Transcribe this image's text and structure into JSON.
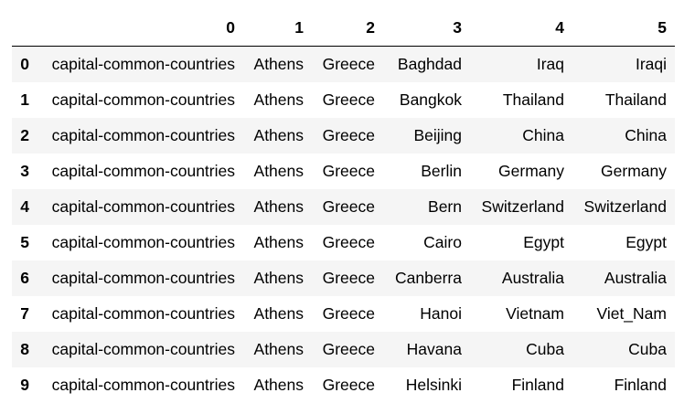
{
  "table": {
    "columns": [
      "",
      "0",
      "1",
      "2",
      "3",
      "4",
      "5"
    ],
    "rows": [
      {
        "index": "0",
        "cells": [
          "capital-common-countries",
          "Athens",
          "Greece",
          "Baghdad",
          "Iraq",
          "Iraqi"
        ]
      },
      {
        "index": "1",
        "cells": [
          "capital-common-countries",
          "Athens",
          "Greece",
          "Bangkok",
          "Thailand",
          "Thailand"
        ]
      },
      {
        "index": "2",
        "cells": [
          "capital-common-countries",
          "Athens",
          "Greece",
          "Beijing",
          "China",
          "China"
        ]
      },
      {
        "index": "3",
        "cells": [
          "capital-common-countries",
          "Athens",
          "Greece",
          "Berlin",
          "Germany",
          "Germany"
        ]
      },
      {
        "index": "4",
        "cells": [
          "capital-common-countries",
          "Athens",
          "Greece",
          "Bern",
          "Switzerland",
          "Switzerland"
        ]
      },
      {
        "index": "5",
        "cells": [
          "capital-common-countries",
          "Athens",
          "Greece",
          "Cairo",
          "Egypt",
          "Egypt"
        ]
      },
      {
        "index": "6",
        "cells": [
          "capital-common-countries",
          "Athens",
          "Greece",
          "Canberra",
          "Australia",
          "Australia"
        ]
      },
      {
        "index": "7",
        "cells": [
          "capital-common-countries",
          "Athens",
          "Greece",
          "Hanoi",
          "Vietnam",
          "Viet_Nam"
        ]
      },
      {
        "index": "8",
        "cells": [
          "capital-common-countries",
          "Athens",
          "Greece",
          "Havana",
          "Cuba",
          "Cuba"
        ]
      },
      {
        "index": "9",
        "cells": [
          "capital-common-countries",
          "Athens",
          "Greece",
          "Helsinki",
          "Finland",
          "Finland"
        ]
      }
    ]
  },
  "colors": {
    "stripe": "#f5f5f5",
    "background": "#ffffff",
    "header_rule": "#000000"
  }
}
